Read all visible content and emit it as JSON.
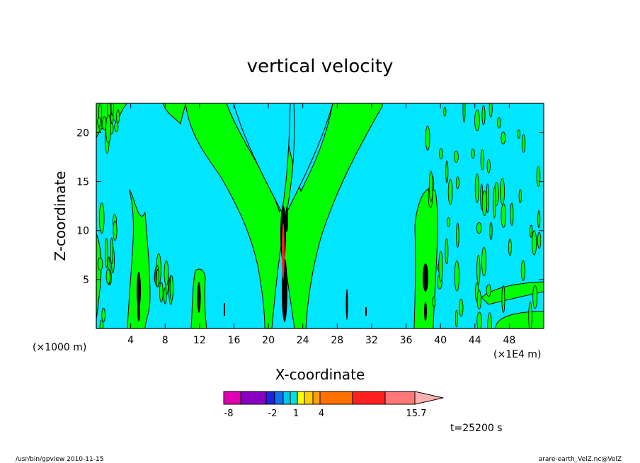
{
  "chart_data": {
    "type": "contour",
    "title": "vertical velocity",
    "xlabel": "X-coordinate",
    "ylabel": "Z-coordinate",
    "x_unit_left": "(×1000 m)",
    "x_unit_right": "(×1E4 m)",
    "xlim": [
      0,
      52
    ],
    "ylim": [
      0,
      23
    ],
    "x_ticks": [
      4,
      8,
      12,
      16,
      20,
      24,
      28,
      32,
      36,
      40,
      44,
      48
    ],
    "y_ticks": [
      5,
      10,
      15,
      20
    ],
    "time_label": "t=25200 s",
    "colorbar": {
      "labels": [
        "-8",
        "-2",
        "1",
        "4",
        "15.7"
      ],
      "colors": [
        "#e000b0",
        "#8a00c0",
        "#2020e0",
        "#1070f0",
        "#00c8e8",
        "#00e0e0",
        "#ffff00",
        "#ffd000",
        "#ffa000",
        "#ff7000",
        "#ff2020",
        "#ff7878",
        "#ffb0b0"
      ]
    },
    "background_color": "#00e6ff",
    "positive_color": "#00ff00",
    "updraft_centers_x": [
      5,
      12,
      21.5,
      29,
      38
    ]
  },
  "footer": {
    "left": "/usr/bin/gpview   2010-11-15",
    "right": "arare-earth_VelZ.nc@VelZ"
  }
}
